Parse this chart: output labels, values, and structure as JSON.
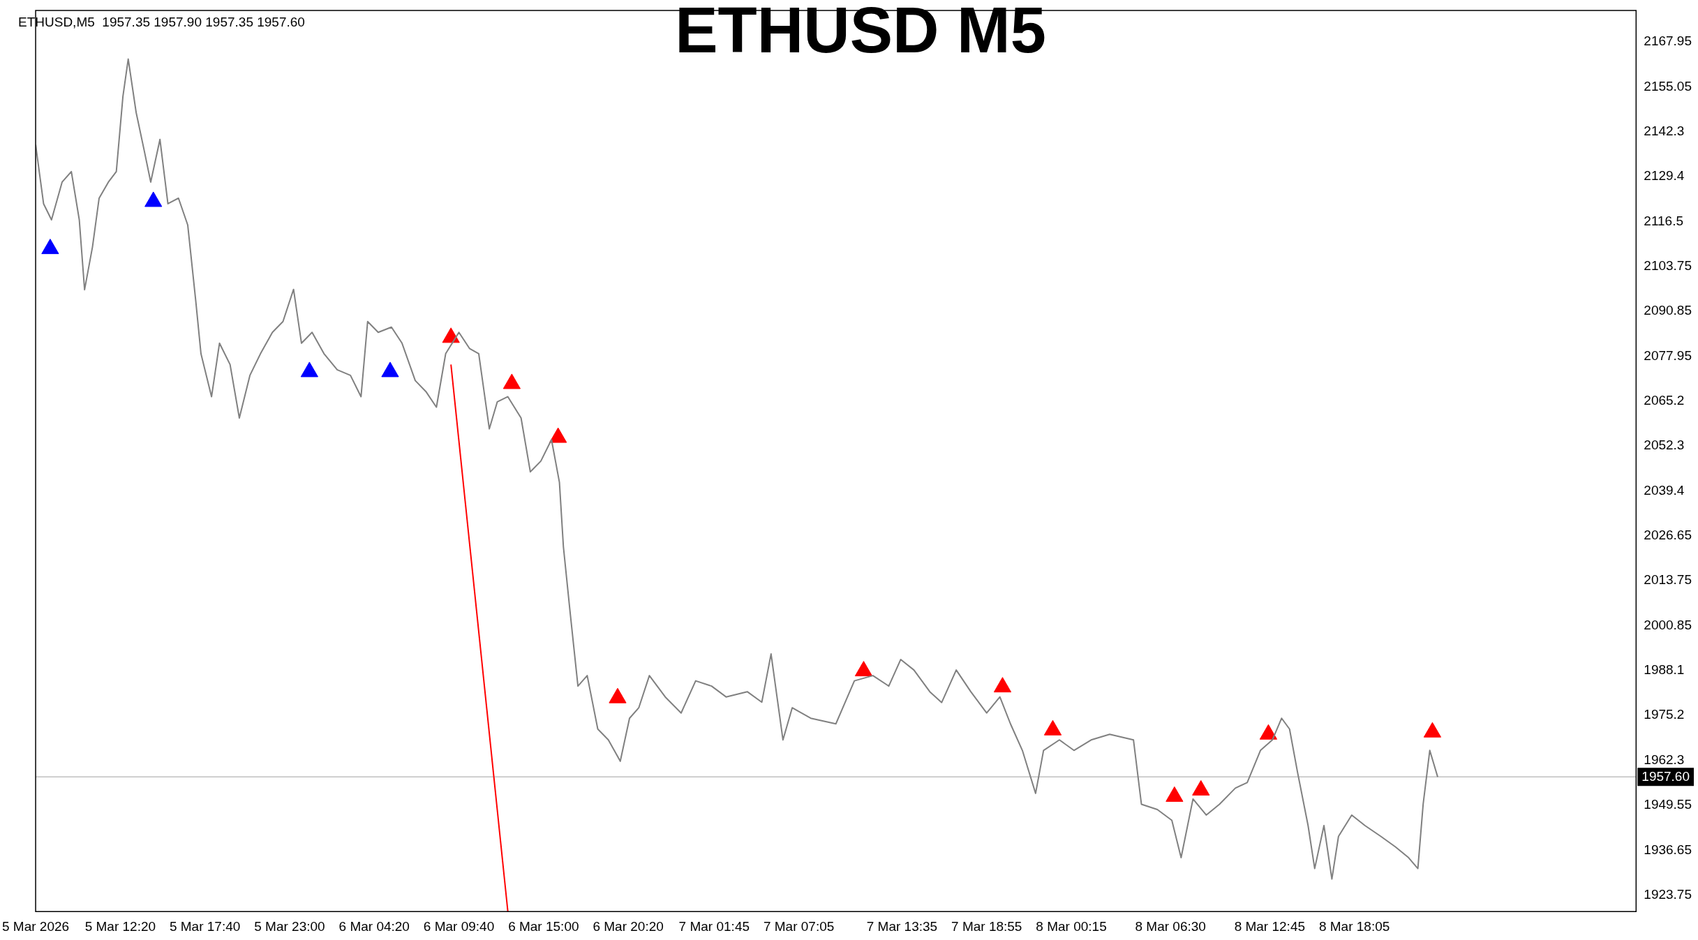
{
  "chart_data": {
    "type": "line",
    "title": "ETHUSD M5",
    "annotations": [
      "ETHUSD,M5  1957.35 1957.90 1957.35 1957.60"
    ],
    "xlim": [
      "2026-03-05T07:00",
      "2026-03-09T11:50"
    ],
    "ylim": [
      1919.1,
      2176.9
    ],
    "xticks": [
      {
        "value": "2026-03-05T07:00",
        "label": "5 Mar 2026"
      },
      {
        "value": "2026-03-05T12:20",
        "label": "5 Mar 12:20"
      },
      {
        "value": "2026-03-05T17:40",
        "label": "5 Mar 17:40"
      },
      {
        "value": "2026-03-05T23:00",
        "label": "5 Mar 23:00"
      },
      {
        "value": "2026-03-06T04:20",
        "label": "6 Mar 04:20"
      },
      {
        "value": "2026-03-06T09:40",
        "label": "6 Mar 09:40"
      },
      {
        "value": "2026-03-06T15:00",
        "label": "6 Mar 15:00"
      },
      {
        "value": "2026-03-06T20:20",
        "label": "6 Mar 20:20"
      },
      {
        "value": "2026-03-07T01:45",
        "label": "7 Mar 01:45"
      },
      {
        "value": "2026-03-07T07:05",
        "label": "7 Mar 07:05"
      },
      {
        "value": "2026-03-07T13:35",
        "label": "7 Mar 13:35"
      },
      {
        "value": "2026-03-07T18:55",
        "label": "7 Mar 18:55"
      },
      {
        "value": "2026-03-08T00:15",
        "label": "8 Mar 00:15"
      },
      {
        "value": "2026-03-08T06:30",
        "label": "8 Mar 06:30"
      },
      {
        "value": "2026-03-08T12:45",
        "label": "8 Mar 12:45"
      },
      {
        "value": "2026-03-08T18:05",
        "label": "8 Mar 18:05"
      }
    ],
    "yticks": [
      1923.75,
      1936.65,
      1949.55,
      1962.3,
      1975.2,
      1988.1,
      2000.85,
      2013.75,
      2026.65,
      2039.4,
      2052.3,
      2065.2,
      2077.95,
      2090.85,
      2103.75,
      2116.5,
      2129.4,
      2142.3,
      2155.05,
      2167.95
    ],
    "grid": false,
    "legend": false,
    "ref_lines": [
      {
        "axis": "y",
        "value": 1957.6,
        "label": "1957.60",
        "color": "#c0c0c0"
      }
    ],
    "series": [
      {
        "color": "#808080",
        "marker": "none",
        "x": [
          "2026-03-05T07:00",
          "2026-03-05T07:30",
          "2026-03-05T08:00",
          "2026-03-05T08:40",
          "2026-03-05T09:15",
          "2026-03-05T09:45",
          "2026-03-05T10:05",
          "2026-03-05T10:35",
          "2026-03-05T11:00",
          "2026-03-05T11:35",
          "2026-03-05T12:05",
          "2026-03-05T12:30",
          "2026-03-05T12:50",
          "2026-03-05T13:20",
          "2026-03-05T13:50",
          "2026-03-05T14:15",
          "2026-03-05T14:50",
          "2026-03-05T15:20",
          "2026-03-05T16:00",
          "2026-03-05T16:35",
          "2026-03-05T17:05",
          "2026-03-05T17:25",
          "2026-03-05T18:05",
          "2026-03-05T18:35",
          "2026-03-05T19:15",
          "2026-03-05T19:50",
          "2026-03-05T20:30",
          "2026-03-05T21:10",
          "2026-03-05T21:55",
          "2026-03-05T22:35",
          "2026-03-05T23:15",
          "2026-03-05T23:45",
          "2026-03-06T00:25",
          "2026-03-06T01:10",
          "2026-03-06T02:00",
          "2026-03-06T02:50",
          "2026-03-06T03:30",
          "2026-03-06T03:55",
          "2026-03-06T04:35",
          "2026-03-06T05:25",
          "2026-03-06T06:05",
          "2026-03-06T06:55",
          "2026-03-06T07:35",
          "2026-03-06T08:15",
          "2026-03-06T08:50",
          "2026-03-06T09:40",
          "2026-03-06T10:20",
          "2026-03-06T10:55",
          "2026-03-06T11:35",
          "2026-03-06T12:05",
          "2026-03-06T12:45",
          "2026-03-06T13:35",
          "2026-03-06T14:10",
          "2026-03-06T14:50",
          "2026-03-06T15:30",
          "2026-03-06T16:00",
          "2026-03-06T16:15",
          "2026-03-06T16:40",
          "2026-03-06T17:10",
          "2026-03-06T17:45",
          "2026-03-06T18:25",
          "2026-03-06T19:05",
          "2026-03-06T19:50",
          "2026-03-06T20:25",
          "2026-03-06T21:00",
          "2026-03-06T21:40",
          "2026-03-06T22:40",
          "2026-03-06T23:40",
          "2026-03-07T00:35",
          "2026-03-07T01:35",
          "2026-03-07T02:30",
          "2026-03-07T03:50",
          "2026-03-07T04:45",
          "2026-03-07T05:20",
          "2026-03-07T06:05",
          "2026-03-07T06:40",
          "2026-03-07T07:50",
          "2026-03-07T09:25",
          "2026-03-07T10:35",
          "2026-03-07T11:45",
          "2026-03-07T12:45",
          "2026-03-07T13:30",
          "2026-03-07T14:20",
          "2026-03-07T15:20",
          "2026-03-07T16:05",
          "2026-03-07T17:00",
          "2026-03-07T17:55",
          "2026-03-07T18:55",
          "2026-03-07T19:45",
          "2026-03-07T20:25",
          "2026-03-07T21:10",
          "2026-03-07T22:00",
          "2026-03-07T22:30",
          "2026-03-07T23:30",
          "2026-03-08T00:25",
          "2026-03-08T01:30",
          "2026-03-08T02:40",
          "2026-03-08T04:10",
          "2026-03-08T04:40",
          "2026-03-08T05:40",
          "2026-03-08T06:35",
          "2026-03-08T07:10",
          "2026-03-08T07:55",
          "2026-03-08T08:45",
          "2026-03-08T09:35",
          "2026-03-08T10:35",
          "2026-03-08T11:20",
          "2026-03-08T12:10",
          "2026-03-08T12:55",
          "2026-03-08T13:30",
          "2026-03-08T14:00",
          "2026-03-08T14:30",
          "2026-03-08T15:10",
          "2026-03-08T15:35",
          "2026-03-08T16:10",
          "2026-03-08T16:40",
          "2026-03-08T17:05",
          "2026-03-08T17:55",
          "2026-03-08T18:45",
          "2026-03-08T19:45",
          "2026-03-08T20:40",
          "2026-03-08T21:30",
          "2026-03-08T22:05",
          "2026-03-08T22:25",
          "2026-03-08T22:50",
          "2026-03-08T23:20"
        ],
        "values": [
          2138.5,
          2121.6,
          2117,
          2127.8,
          2130.8,
          2117,
          2097,
          2109.3,
          2123.2,
          2127.8,
          2130.8,
          2152.3,
          2163,
          2147.7,
          2137,
          2127.8,
          2140,
          2121.6,
          2123.2,
          2115.5,
          2094,
          2078.7,
          2066.4,
          2081.7,
          2075.6,
          2060.3,
          2072.5,
          2078.7,
          2084.8,
          2087.9,
          2097.1,
          2081.7,
          2084.8,
          2078.7,
          2074.1,
          2072.5,
          2066.4,
          2087.9,
          2084.8,
          2086.3,
          2081.7,
          2071,
          2067.9,
          2063.4,
          2078.7,
          2084.8,
          2080.2,
          2078.7,
          2057.2,
          2064.9,
          2066.4,
          2060.3,
          2044.9,
          2048,
          2054.1,
          2041.9,
          2023.5,
          2005,
          1983.6,
          1986.6,
          1971.3,
          1968.2,
          1962.1,
          1974.4,
          1977.4,
          1986.6,
          1980.5,
          1975.9,
          1985.1,
          1983.6,
          1980.5,
          1982,
          1979,
          1992.8,
          1968.2,
          1977.4,
          1974.4,
          1972.8,
          1985.1,
          1986.6,
          1983.6,
          1991.2,
          1988.2,
          1982,
          1978.9,
          1988.2,
          1982,
          1975.9,
          1980.5,
          1972.8,
          1965.2,
          1952.9,
          1965.2,
          1968.2,
          1965.2,
          1968.2,
          1969.8,
          1968.2,
          1949.8,
          1948.3,
          1945.2,
          1934.5,
          1951.3,
          1946.7,
          1949.8,
          1954.4,
          1956,
          1965.2,
          1968.2,
          1974.4,
          1971.3,
          1959,
          1943.7,
          1931.4,
          1943.7,
          1928.4,
          1940.6,
          1946.7,
          1943.7,
          1940.6,
          1937.6,
          1934.5,
          1931.4,
          1949.8,
          1965.2,
          1957.6
        ]
      },
      {
        "type": "line",
        "color": "#ff0000",
        "marker": "none",
        "x": [
          "2026-03-06T09:10",
          "2026-03-06T12:45"
        ],
        "values": [
          2075.6,
          1919.1
        ]
      },
      {
        "type": "scatter",
        "color": "#0000ff",
        "marker": "triangle",
        "x": [
          "2026-03-05T07:55",
          "2026-03-05T14:25",
          "2026-03-06T00:15",
          "2026-03-06T05:20"
        ],
        "values": [
          2108.7,
          2122.2,
          2073.5,
          2073.5
        ]
      },
      {
        "type": "scatter",
        "color": "#ff0000",
        "marker": "triangle",
        "x": [
          "2026-03-06T09:10",
          "2026-03-06T13:00",
          "2026-03-06T15:55",
          "2026-03-06T19:40",
          "2026-03-07T11:10",
          "2026-03-07T19:55",
          "2026-03-07T23:05",
          "2026-03-08T06:45",
          "2026-03-08T08:25",
          "2026-03-08T12:40",
          "2026-03-08T23:00"
        ],
        "values": [
          2083.3,
          2070.1,
          2054.7,
          1980.2,
          1987.9,
          1983.3,
          1971,
          1952,
          1953.8,
          1969.8,
          1970.4
        ]
      }
    ]
  }
}
